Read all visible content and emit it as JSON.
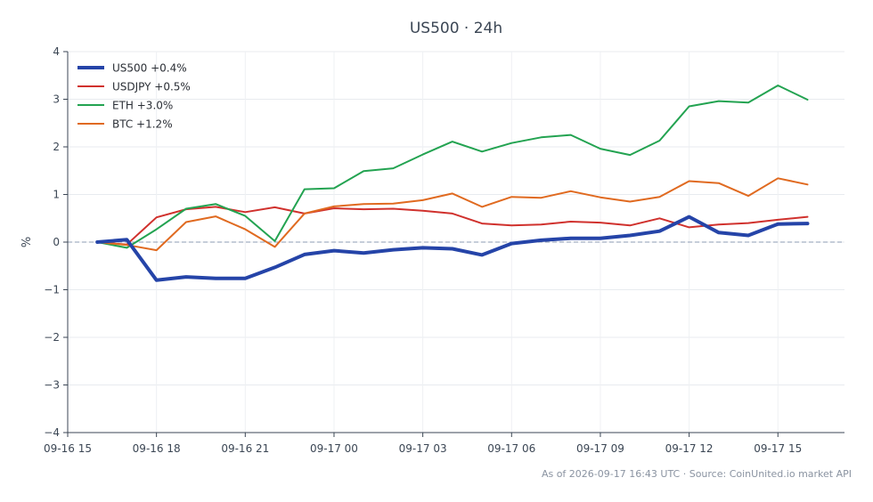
{
  "chart_data": {
    "type": "line",
    "title": "US500 · 24h",
    "xlabel": "",
    "ylabel": "%",
    "ylim": [
      -4,
      4
    ],
    "xlim": [
      "2026-09-16 15:00",
      "2026-09-17 17:15"
    ],
    "yticks": [
      4,
      3,
      2,
      1,
      0,
      -1,
      -2,
      -3,
      -4
    ],
    "ytick_labels": [
      "4",
      "3",
      "2",
      "1",
      "0",
      "−1",
      "−2",
      "−3",
      "−4"
    ],
    "xticks": [
      "2026-09-16 15:00",
      "2026-09-16 18:00",
      "2026-09-16 21:00",
      "2026-09-17 00:00",
      "2026-09-17 03:00",
      "2026-09-17 06:00",
      "2026-09-17 09:00",
      "2026-09-17 12:00",
      "2026-09-17 15:00"
    ],
    "xtick_labels": [
      "09-16 15",
      "09-16 18",
      "09-16 21",
      "09-17 00",
      "09-17 03",
      "09-17 06",
      "09-17 09",
      "09-17 12",
      "09-17 15"
    ],
    "grid": true,
    "legend_position": "top-left",
    "zero_line": true,
    "x": [
      "2026-09-16 16:00",
      "2026-09-16 17:00",
      "2026-09-16 18:00",
      "2026-09-16 19:00",
      "2026-09-16 20:00",
      "2026-09-16 21:00",
      "2026-09-16 22:00",
      "2026-09-16 23:00",
      "2026-09-17 00:00",
      "2026-09-17 01:00",
      "2026-09-17 02:00",
      "2026-09-17 03:00",
      "2026-09-17 04:00",
      "2026-09-17 05:00",
      "2026-09-17 06:00",
      "2026-09-17 07:00",
      "2026-09-17 08:00",
      "2026-09-17 09:00",
      "2026-09-17 10:00",
      "2026-09-17 11:00",
      "2026-09-17 12:00",
      "2026-09-17 13:00",
      "2026-09-17 14:00",
      "2026-09-17 15:00",
      "2026-09-17 16:00"
    ],
    "series": [
      {
        "name": "US500 +0.4%",
        "color": "#2544a8",
        "width": 4,
        "values": [
          0.0,
          0.05,
          -0.8,
          -0.73,
          -0.76,
          -0.76,
          -0.53,
          -0.26,
          -0.18,
          -0.23,
          -0.16,
          -0.12,
          -0.14,
          -0.27,
          -0.03,
          0.04,
          0.08,
          0.08,
          0.14,
          0.23,
          0.53,
          0.2,
          0.14,
          0.38,
          0.39
        ]
      },
      {
        "name": "USDJPY +0.5%",
        "color": "#d0312d",
        "width": 2,
        "values": [
          0.0,
          -0.05,
          0.52,
          0.69,
          0.74,
          0.63,
          0.73,
          0.6,
          0.71,
          0.69,
          0.7,
          0.66,
          0.6,
          0.39,
          0.35,
          0.37,
          0.43,
          0.41,
          0.35,
          0.5,
          0.31,
          0.37,
          0.4,
          0.47,
          0.53
        ]
      },
      {
        "name": "ETH +3.0%",
        "color": "#23a351",
        "width": 2,
        "values": [
          0.0,
          -0.12,
          0.27,
          0.7,
          0.8,
          0.55,
          0.02,
          1.11,
          1.13,
          1.49,
          1.55,
          1.84,
          2.11,
          1.9,
          2.08,
          2.2,
          2.25,
          1.96,
          1.83,
          2.13,
          2.85,
          2.96,
          2.93,
          3.29,
          2.99
        ]
      },
      {
        "name": "BTC +1.2%",
        "color": "#e06a20",
        "width": 2,
        "values": [
          0.0,
          -0.06,
          -0.17,
          0.42,
          0.54,
          0.27,
          -0.1,
          0.6,
          0.75,
          0.8,
          0.81,
          0.88,
          1.02,
          0.74,
          0.95,
          0.93,
          1.07,
          0.94,
          0.85,
          0.95,
          1.28,
          1.24,
          0.97,
          1.34,
          1.21
        ]
      }
    ]
  },
  "footer": "As of 2026-09-17 16:43 UTC · Source: CoinUnited.io market API"
}
